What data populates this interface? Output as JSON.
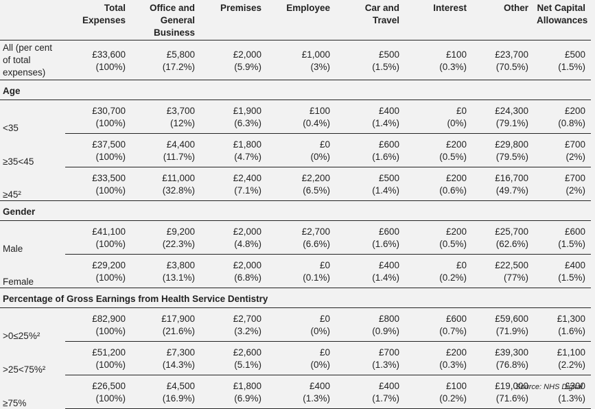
{
  "columns": [
    "",
    "Total Expenses",
    "Office and General Business",
    "Premises",
    "Employee",
    "Car and Travel",
    "Interest",
    "Other",
    "Net Capital Allowances"
  ],
  "all_row": {
    "label": "All (per cent of total expenses)",
    "values": [
      "£33,600",
      "£5,800",
      "£2,000",
      "£1,000",
      "£500",
      "£100",
      "£23,700",
      "£500"
    ],
    "percents": [
      "(100%)",
      "(17.2%)",
      "(5.9%)",
      "(3%)",
      "(1.5%)",
      "(0.3%)",
      "(70.5%)",
      "(1.5%)"
    ]
  },
  "sections": [
    {
      "title": "Age",
      "rows": [
        {
          "label": "<35",
          "values": [
            "£30,700",
            "£3,700",
            "£1,900",
            "£100",
            "£400",
            "£0",
            "£24,300",
            "£200"
          ],
          "percents": [
            "(100%)",
            "(12%)",
            "(6.3%)",
            "(0.4%)",
            "(1.4%)",
            "(0%)",
            "(79.1%)",
            "(0.8%)"
          ]
        },
        {
          "label": "≥35<45",
          "values": [
            "£37,500",
            "£4,400",
            "£1,800",
            "£0",
            "£600",
            "£200",
            "£29,800",
            "£700"
          ],
          "percents": [
            "(100%)",
            "(11.7%)",
            "(4.7%)",
            "(0%)",
            "(1.6%)",
            "(0.5%)",
            "(79.5%)",
            "(2%)"
          ]
        },
        {
          "label": "≥45²",
          "values": [
            "£33,500",
            "£11,000",
            "£2,400",
            "£2,200",
            "£500",
            "£200",
            "£16,700",
            "£700"
          ],
          "percents": [
            "(100%)",
            "(32.8%)",
            "(7.1%)",
            "(6.5%)",
            "(1.4%)",
            "(0.6%)",
            "(49.7%)",
            "(2%)"
          ]
        }
      ]
    },
    {
      "title": "Gender",
      "rows": [
        {
          "label": "Male",
          "values": [
            "£41,100",
            "£9,200",
            "£2,000",
            "£2,700",
            "£600",
            "£200",
            "£25,700",
            "£600"
          ],
          "percents": [
            "(100%)",
            "(22.3%)",
            "(4.8%)",
            "(6.6%)",
            "(1.6%)",
            "(0.5%)",
            "(62.6%)",
            "(1.5%)"
          ]
        },
        {
          "label": "Female",
          "values": [
            "£29,200",
            "£3,800",
            "£2,000",
            "£0",
            "£400",
            "£0",
            "£22,500",
            "£400"
          ],
          "percents": [
            "(100%)",
            "(13.1%)",
            "(6.8%)",
            "(0.1%)",
            "(1.4%)",
            "(0.2%)",
            "(77%)",
            "(1.5%)"
          ]
        }
      ]
    },
    {
      "title": "Percentage of Gross Earnings from Health Service Dentistry",
      "rows": [
        {
          "label": ">0≤25%²",
          "values": [
            "£82,900",
            "£17,900",
            "£2,700",
            "£0",
            "£800",
            "£600",
            "£59,600",
            "£1,300"
          ],
          "percents": [
            "(100%)",
            "(21.6%)",
            "(3.2%)",
            "(0%)",
            "(0.9%)",
            "(0.7%)",
            "(71.9%)",
            "(1.6%)"
          ]
        },
        {
          "label": ">25<75%²",
          "values": [
            "£51,200",
            "£7,300",
            "£2,600",
            "£0",
            "£700",
            "£200",
            "£39,300",
            "£1,100"
          ],
          "percents": [
            "(100%)",
            "(14.3%)",
            "(5.1%)",
            "(0%)",
            "(1.3%)",
            "(0.3%)",
            "(76.8%)",
            "(2.2%)"
          ]
        },
        {
          "label": "≥75%",
          "values": [
            "£26,500",
            "£4,500",
            "£1,800",
            "£400",
            "£400",
            "£100",
            "£19,000",
            "£300"
          ],
          "percents": [
            "(100%)",
            "(16.9%)",
            "(6.9%)",
            "(1.3%)",
            "(1.7%)",
            "(0.2%)",
            "(71.6%)",
            "(1.3%)"
          ]
        }
      ]
    }
  ],
  "source": "Source: NHS Digital"
}
